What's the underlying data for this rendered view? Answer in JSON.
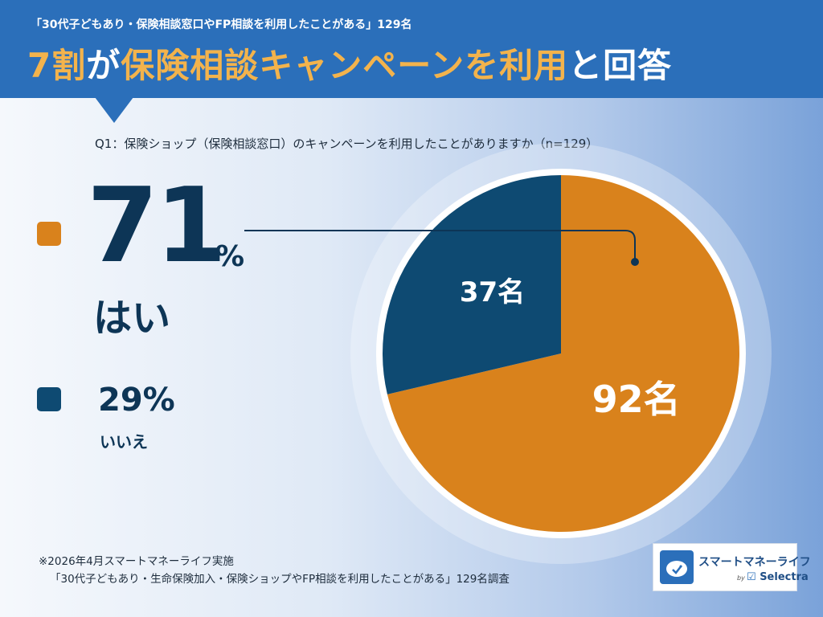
{
  "header": {
    "subtitle": "「30代子どもあり・保険相談窓口やFP相談を利用したことがある」129名",
    "title_highlight_1": "7割",
    "title_plain_1": "が",
    "title_highlight_2": "保険相談キャンペーンを利用",
    "title_plain_2": "と回答"
  },
  "question": "Q1：保険ショップ（保険相談窓口）のキャンペーンを利用したことがありますか（n=129）",
  "legend": {
    "yes": {
      "value": "71",
      "unit": "%",
      "label": "はい"
    },
    "no": {
      "value": "29%",
      "label": "いいえ"
    }
  },
  "colors": {
    "yes": "#d9821c",
    "no": "#0e4a72",
    "header": "#2b6fba",
    "accent": "#f3b34c"
  },
  "chart_data": {
    "type": "pie",
    "slices": [
      {
        "label": "はい",
        "count": 92,
        "percent": 71,
        "data_label": "92名",
        "color": "#d9821c"
      },
      {
        "label": "いいえ",
        "count": 37,
        "percent": 29,
        "data_label": "37名",
        "color": "#0e4a72"
      }
    ],
    "total": 129
  },
  "footnote": {
    "line1": "※2026年4月スマートマネーライフ実施",
    "line2": "「30代子どもあり・生命保険加入・保険ショップやFP相談を利用したことがある」129名調査"
  },
  "logo": {
    "name": "スマートマネーライフ",
    "by": "by",
    "partner": "Selectra"
  }
}
